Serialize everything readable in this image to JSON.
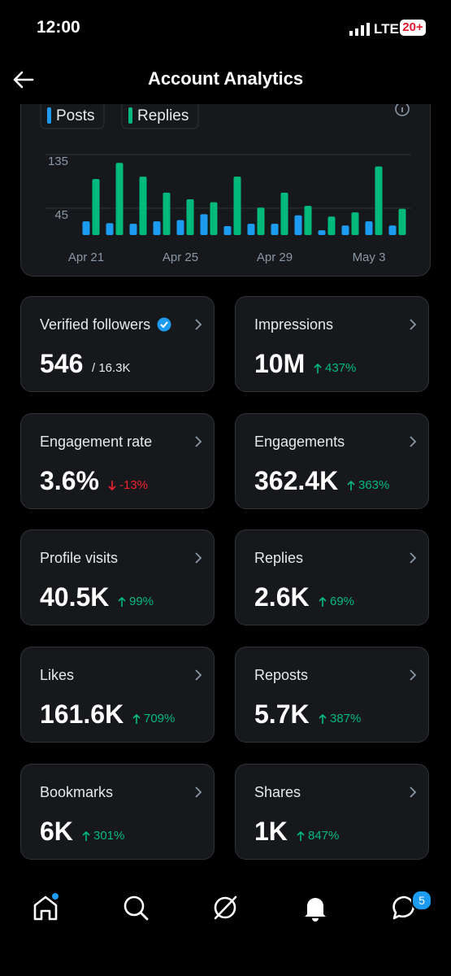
{
  "status_bar": {
    "time": "12:00",
    "network": "LTE",
    "battery": "20+"
  },
  "header": {
    "title": "Account Analytics"
  },
  "chart_data": {
    "type": "bar",
    "categories": [
      "Apr 21",
      null,
      null,
      null,
      "Apr 25",
      null,
      null,
      null,
      "Apr 29",
      null,
      null,
      null,
      "May 3",
      null
    ],
    "series": [
      {
        "name": "Posts",
        "color": "#1d9bf0",
        "values": [
          23,
          20,
          19,
          23,
          25,
          35,
          15,
          19,
          19,
          33,
          8,
          16,
          23,
          16
        ]
      },
      {
        "name": "Replies",
        "color": "#00ba7c",
        "values": [
          94,
          121,
          98,
          71,
          60,
          55,
          98,
          46,
          71,
          49,
          31,
          38,
          115,
          44
        ]
      }
    ],
    "ylim": [
      0,
      135
    ],
    "yticks": [
      45,
      135
    ],
    "grid": true
  },
  "cards": [
    {
      "title": "Verified followers",
      "value": "546",
      "detail": "/ 16.3K",
      "verified": true
    },
    {
      "title": "Impressions",
      "value": "10M",
      "detail": "437%",
      "direction": "up"
    },
    {
      "title": "Engagement rate",
      "value": "3.6%",
      "detail": "-13%",
      "direction": "down"
    },
    {
      "title": "Engagements",
      "value": "362.4K",
      "detail": "363%",
      "direction": "up"
    },
    {
      "title": "Profile visits",
      "value": "40.5K",
      "detail": "99%",
      "direction": "up"
    },
    {
      "title": "Replies",
      "value": "2.6K",
      "detail": "69%",
      "direction": "up"
    },
    {
      "title": "Likes",
      "value": "161.6K",
      "detail": "709%",
      "direction": "up"
    },
    {
      "title": "Reposts",
      "value": "5.7K",
      "detail": "387%",
      "direction": "up"
    },
    {
      "title": "Bookmarks",
      "value": "6K",
      "detail": "301%",
      "direction": "up"
    },
    {
      "title": "Shares",
      "value": "1K",
      "detail": "847%",
      "direction": "up"
    }
  ],
  "nav": {
    "messages_badge": "5"
  }
}
